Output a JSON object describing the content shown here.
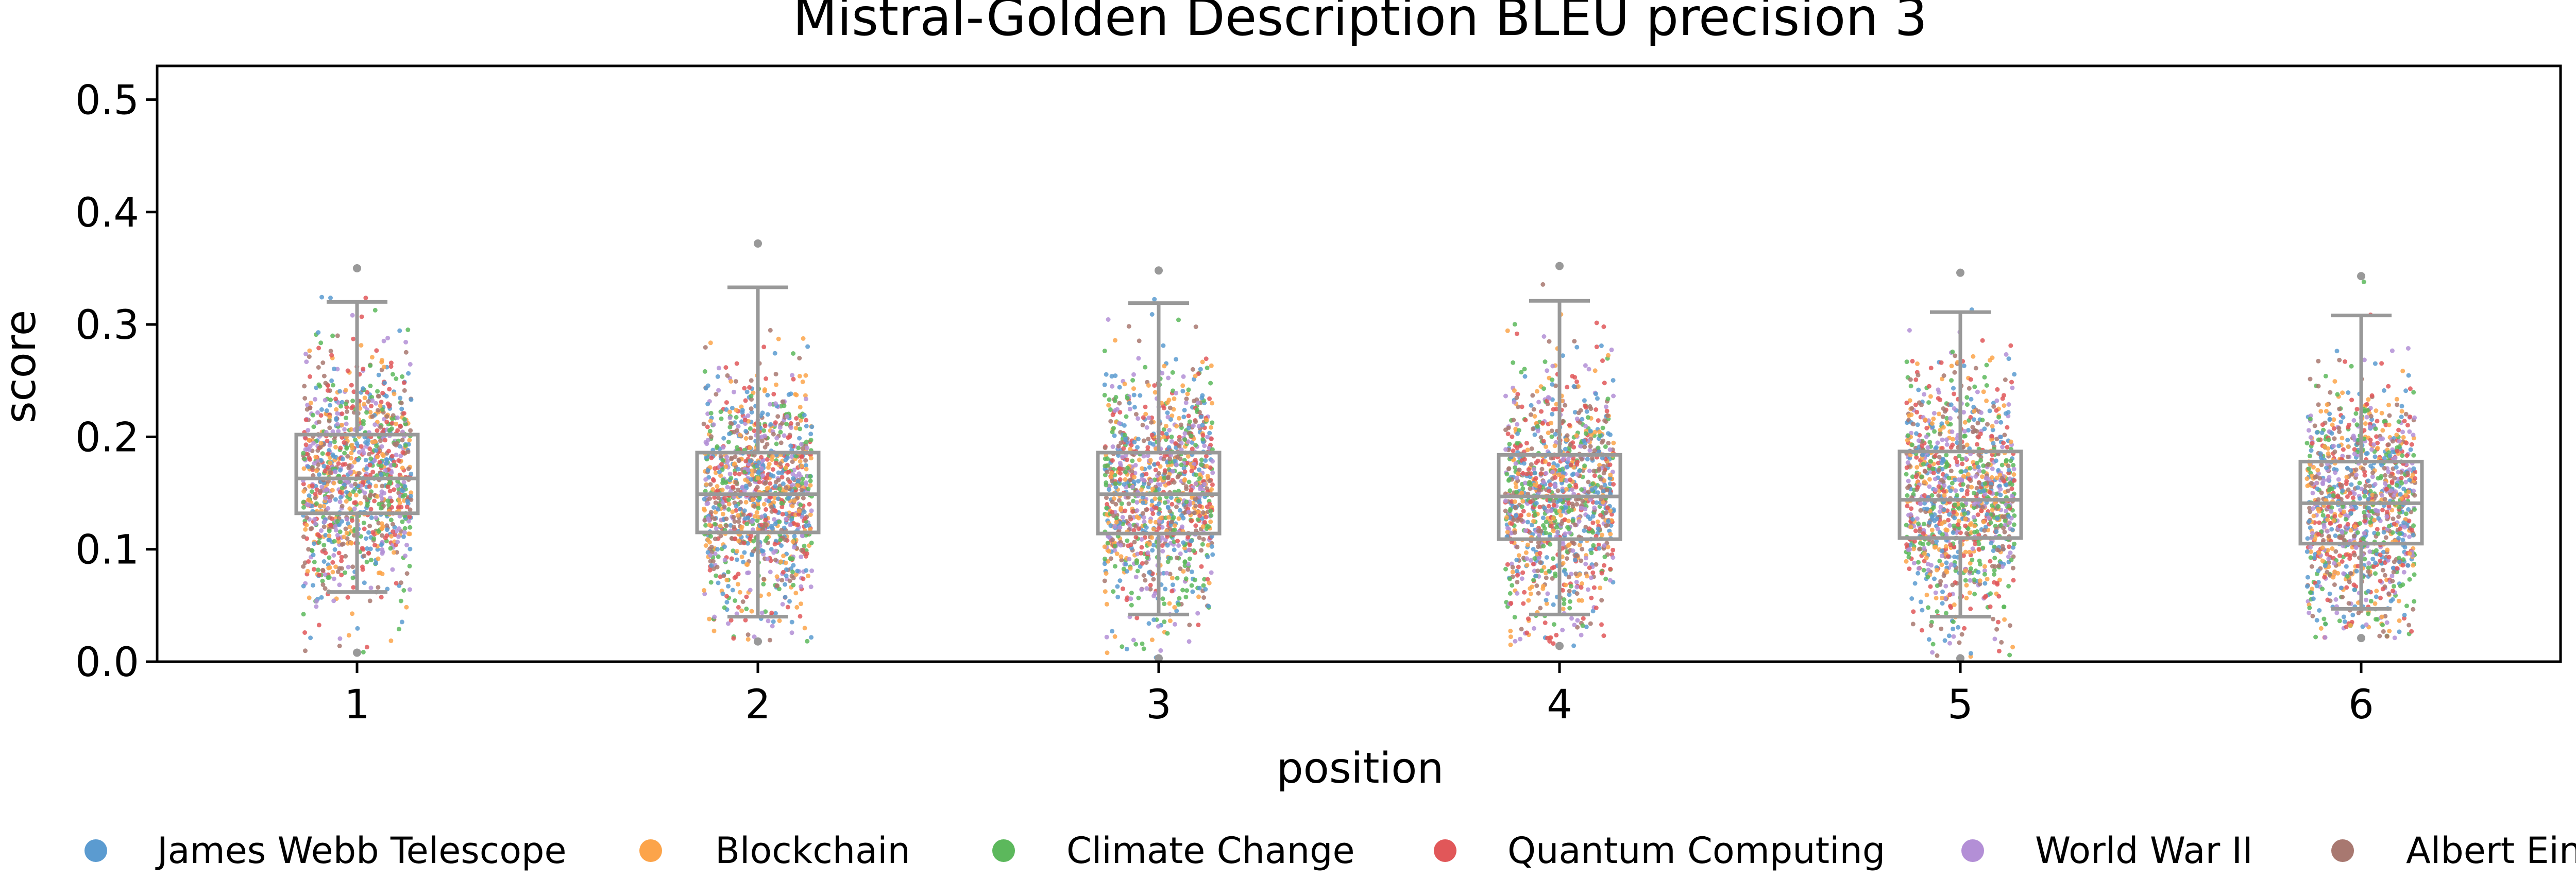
{
  "chart_data": {
    "type": "box",
    "title": "Mistral-Golden Description BLEU precision 3",
    "xlabel": "position",
    "ylabel": "score",
    "ylim": [
      0,
      0.53
    ],
    "yticks": [
      "0.0",
      "0.1",
      "0.2",
      "0.3",
      "0.4",
      "0.5"
    ],
    "categories": [
      "1",
      "2",
      "3",
      "4",
      "5",
      "6"
    ],
    "boxes": [
      {
        "position": "1",
        "whisker_low": 0.062,
        "q1": 0.132,
        "median": 0.163,
        "q3": 0.202,
        "whisker_high": 0.32,
        "min": 0.008,
        "max": 0.35
      },
      {
        "position": "2",
        "whisker_low": 0.04,
        "q1": 0.115,
        "median": 0.149,
        "q3": 0.186,
        "whisker_high": 0.333,
        "min": 0.018,
        "max": 0.372
      },
      {
        "position": "3",
        "whisker_low": 0.042,
        "q1": 0.114,
        "median": 0.149,
        "q3": 0.186,
        "whisker_high": 0.319,
        "min": 0.003,
        "max": 0.348
      },
      {
        "position": "4",
        "whisker_low": 0.042,
        "q1": 0.109,
        "median": 0.147,
        "q3": 0.184,
        "whisker_high": 0.321,
        "min": 0.014,
        "max": 0.352
      },
      {
        "position": "5",
        "whisker_low": 0.04,
        "q1": 0.11,
        "median": 0.144,
        "q3": 0.187,
        "whisker_high": 0.311,
        "min": 0.003,
        "max": 0.346
      },
      {
        "position": "6",
        "whisker_low": 0.047,
        "q1": 0.105,
        "median": 0.141,
        "q3": 0.178,
        "whisker_high": 0.308,
        "min": 0.021,
        "max": 0.343
      }
    ],
    "series": [
      {
        "name": "James Webb Telescope",
        "color": "#5b9bd0"
      },
      {
        "name": "Blockchain",
        "color": "#fca44a"
      },
      {
        "name": "Climate Change",
        "color": "#5cb85c"
      },
      {
        "name": "Quantum Computing",
        "color": "#e15759"
      },
      {
        "name": "World War II",
        "color": "#b38fd6"
      },
      {
        "name": "Albert Einstein",
        "color": "#a87870"
      }
    ],
    "grid": false,
    "legend_position": "bottom",
    "box_color": "#999999"
  }
}
